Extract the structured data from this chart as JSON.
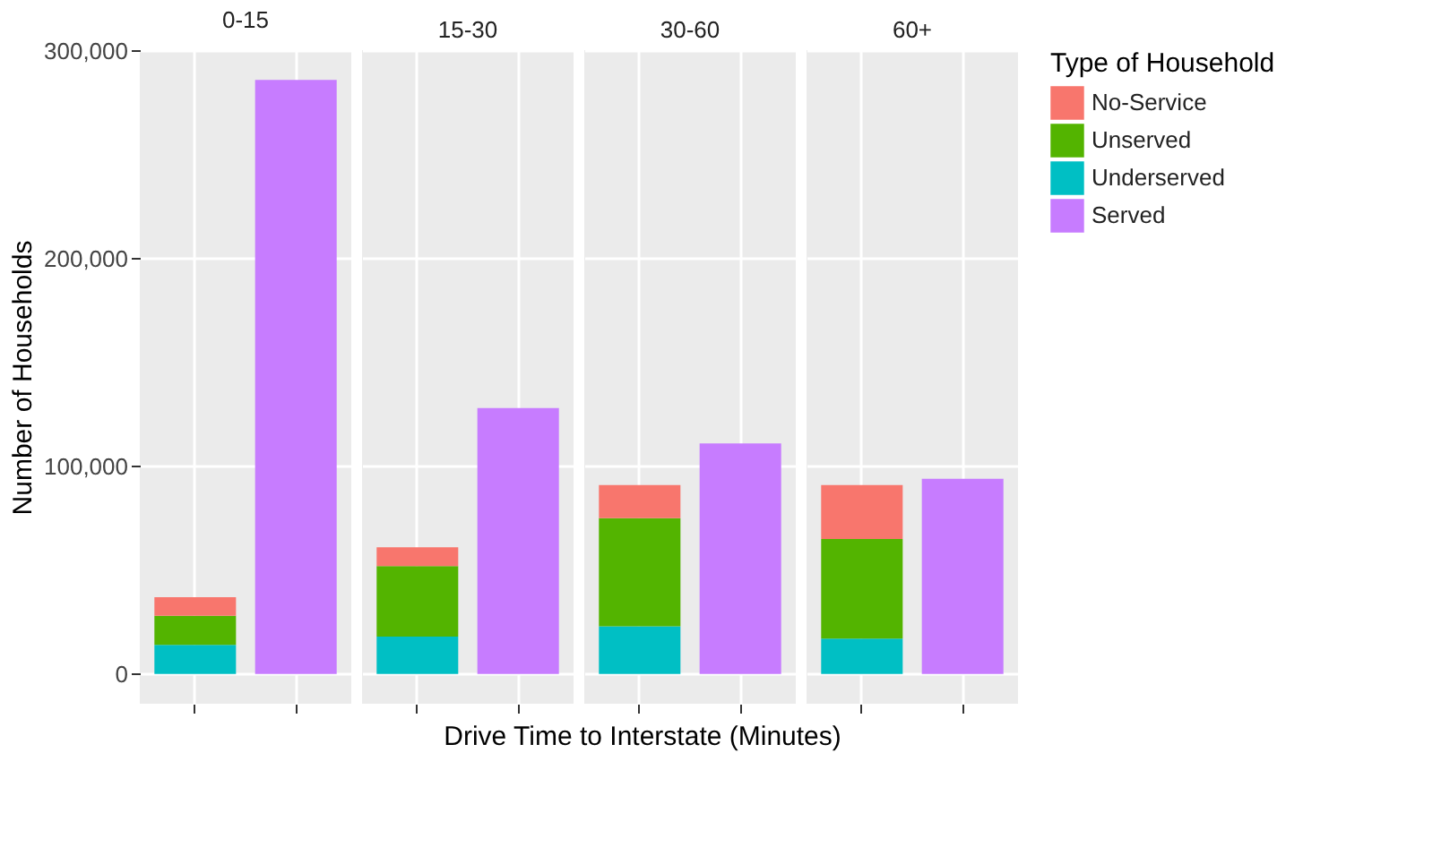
{
  "chart_data": {
    "type": "bar",
    "ylabel": "Number of Households",
    "xlabel": "Drive Time to Interstate (Minutes)",
    "legend_title": "Type of Household",
    "legend": "right",
    "categories": [
      null,
      null,
      null,
      null,
      null,
      null,
      null,
      null
    ],
    "stacked": true,
    "grid": true,
    "ylim": [
      -14300,
      300300
    ],
    "yticks": [
      {
        "value": 0,
        "label": "0"
      },
      {
        "value": 100000,
        "label": "100,000"
      },
      {
        "value": 200000,
        "label": "200,000"
      },
      {
        "value": 300000,
        "label": "300,000"
      }
    ],
    "annotations": [
      "0-15",
      "15-30",
      "30-60",
      "60+"
    ],
    "series": [
      {
        "name": "Served",
        "color": "#c77cff",
        "values": [
          null,
          286000,
          null,
          128000,
          null,
          111000,
          null,
          94000
        ]
      },
      {
        "name": "Underserved",
        "color": "#00bfc4",
        "values": [
          14000,
          null,
          18000,
          null,
          23000,
          null,
          17000,
          null
        ]
      },
      {
        "name": "Unserved",
        "color": "#53b400",
        "values": [
          14000,
          null,
          34000,
          null,
          52000,
          null,
          48000,
          null
        ]
      },
      {
        "name": "No-Service",
        "color": "#f8766d",
        "values": [
          9000,
          null,
          9000,
          null,
          16000,
          null,
          26000,
          null
        ]
      }
    ]
  }
}
